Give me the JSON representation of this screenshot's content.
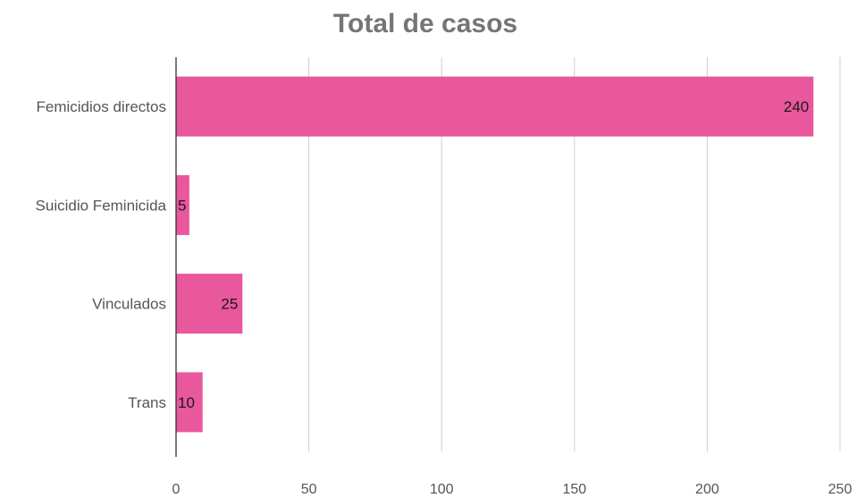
{
  "chart_data": {
    "type": "bar",
    "orientation": "horizontal",
    "title": "Total de casos",
    "xlabel": "",
    "ylabel": "",
    "categories": [
      "Femicidios directos",
      "Suicidio Feminicida",
      "Vinculados",
      "Trans"
    ],
    "values": [
      240,
      5,
      25,
      10
    ],
    "xlim": [
      0,
      250
    ],
    "ticks": [
      0,
      50,
      100,
      150,
      200,
      250
    ],
    "grid": true,
    "legend": "none",
    "bar_color": "#e9579d"
  }
}
